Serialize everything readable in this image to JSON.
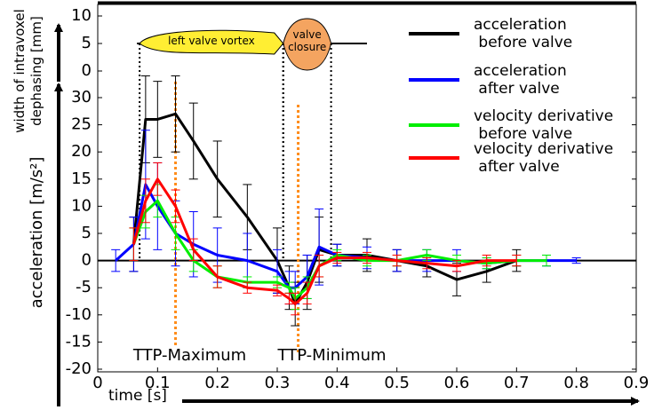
{
  "chart_data": {
    "type": "line",
    "xlabel": "time [s]",
    "ylabel": "acceleration [m/s²]",
    "y2label": "width of intravoxel dephasing [mm]",
    "x": [
      0.03,
      0.06,
      0.08,
      0.1,
      0.13,
      0.16,
      0.2,
      0.25,
      0.3,
      0.32,
      0.33,
      0.35,
      0.37,
      0.4,
      0.45,
      0.5,
      0.55,
      0.6,
      0.65,
      0.7,
      0.75,
      0.8
    ],
    "xlim": [
      0,
      0.9
    ],
    "xticks": [
      0,
      0.1,
      0.2,
      0.3,
      0.4,
      0.5,
      0.6,
      0.7,
      0.8,
      0.9
    ],
    "ylim": [
      -20,
      30
    ],
    "yticks": [
      -20,
      -15,
      -10,
      -5,
      0,
      5,
      10,
      15,
      20,
      25,
      30
    ],
    "y2lim": [
      0,
      10
    ],
    "y2ticks": [
      0,
      5,
      10
    ],
    "legend": "upper right",
    "series": [
      {
        "name": "acceleration\n before valve",
        "color": "#000000",
        "values": [
          null,
          3,
          26,
          26,
          27,
          22,
          15,
          8,
          0,
          -5,
          -8,
          -4,
          2,
          1,
          1,
          0,
          -1,
          -3.5,
          -2,
          0,
          null,
          null
        ],
        "errors": [
          null,
          5,
          8,
          7,
          7,
          7,
          7,
          6,
          6,
          4,
          4,
          5,
          6,
          2,
          3,
          2,
          2,
          3,
          2,
          2,
          null,
          null
        ]
      },
      {
        "name": "acceleration\n after valve",
        "color": "#0000ff",
        "values": [
          0,
          3,
          14,
          10,
          5,
          3,
          1,
          0,
          -2,
          -5,
          -5,
          -3,
          2.5,
          1,
          0.5,
          0,
          0,
          0,
          -0.5,
          0,
          0,
          0
        ],
        "errors": [
          2,
          5,
          10,
          8,
          6,
          6,
          5,
          5,
          4,
          3,
          3,
          4,
          7,
          2,
          2,
          2,
          2,
          2,
          1,
          1,
          1,
          0.5
        ]
      },
      {
        "name": "velocity derivative\n before valve",
        "color": "#00ee00",
        "values": [
          null,
          3,
          9,
          11,
          5,
          0,
          -3,
          -4,
          -4,
          -5,
          -7,
          -5,
          -1,
          1,
          0,
          0,
          1,
          0,
          -0.5,
          0,
          0,
          null
        ],
        "errors": [
          null,
          3,
          3,
          3,
          3,
          2,
          2,
          1,
          1,
          1,
          2,
          2,
          2,
          1,
          1,
          1,
          1,
          1,
          1,
          1,
          1,
          null
        ]
      },
      {
        "name": "velocity derivative\n after valve",
        "color": "#ff0000",
        "values": [
          null,
          3,
          11,
          15,
          10,
          2,
          -3,
          -5,
          -5.5,
          -7,
          -8,
          -6,
          -1,
          0.5,
          0.5,
          0,
          -0.5,
          -1,
          0,
          0,
          null,
          null
        ],
        "errors": [
          null,
          3,
          4,
          3,
          3,
          2,
          2,
          1,
          1,
          1,
          2,
          2,
          2,
          1,
          1,
          1,
          1,
          1,
          1,
          1,
          null,
          null
        ]
      }
    ],
    "dephasing_level": 5,
    "regions": [
      {
        "label": "left valve vortex",
        "start": 0.07,
        "end": 0.31,
        "color": "#ffee33"
      },
      {
        "label": "valve\nclosure",
        "start": 0.31,
        "end": 0.39,
        "color": "#f4a460"
      }
    ],
    "markers": [
      {
        "label": "TTP-Maximum",
        "x": 0.13,
        "color": "#ff8c1a"
      },
      {
        "label": "TTP-Minimum",
        "x": 0.335,
        "color": "#ff8c1a"
      }
    ]
  }
}
